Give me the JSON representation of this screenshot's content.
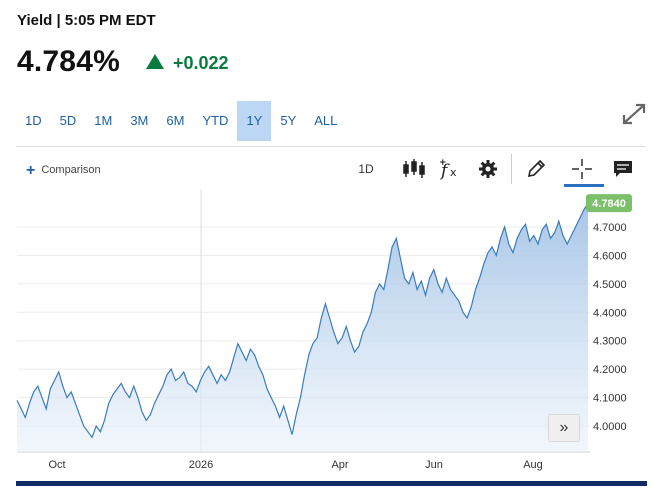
{
  "header": {
    "title": "Yield | 5:05 PM EDT",
    "price": "4.784%",
    "change": "+0.022"
  },
  "ranges": [
    "1D",
    "5D",
    "1M",
    "3M",
    "6M",
    "YTD",
    "1Y",
    "5Y",
    "ALL"
  ],
  "active_range": "1Y",
  "toolbar": {
    "comparison_label": "Comparison",
    "interval_label": "1D",
    "icons": [
      "candlestick-icon",
      "function-icon",
      "gear-icon",
      "pencil-icon",
      "crosshair-icon",
      "comment-icon"
    ]
  },
  "colors": {
    "up": "#0a7b3e",
    "line": "#3a7bbf",
    "accent": "#1f5fa6",
    "last_badge": "#7cc06a"
  },
  "chart_data": {
    "type": "area",
    "y_ticks": [
      "4.7000",
      "4.6000",
      "4.5000",
      "4.4000",
      "4.3000",
      "4.2000",
      "4.1000",
      "4.0000"
    ],
    "ylim": [
      3.92,
      4.8
    ],
    "x_ticks": [
      "Oct",
      "2026",
      "Apr",
      "Jun",
      "Aug"
    ],
    "last_value_label": "4.7840",
    "series": [
      {
        "values": [
          4.09,
          4.06,
          4.03,
          4.08,
          4.12,
          4.14,
          4.1,
          4.06,
          4.13,
          4.16,
          4.19,
          4.14,
          4.1,
          4.12,
          4.08,
          4.04,
          4.0,
          3.98,
          3.96,
          4.0,
          3.98,
          4.02,
          4.08,
          4.11,
          4.13,
          4.15,
          4.12,
          4.1,
          4.14,
          4.1,
          4.05,
          4.02,
          4.04,
          4.08,
          4.11,
          4.14,
          4.18,
          4.2,
          4.16,
          4.17,
          4.19,
          4.15,
          4.14,
          4.12,
          4.16,
          4.19,
          4.21,
          4.18,
          4.15,
          4.18,
          4.16,
          4.19,
          4.24,
          4.29,
          4.26,
          4.23,
          4.27,
          4.25,
          4.21,
          4.18,
          4.13,
          4.1,
          4.07,
          4.03,
          4.07,
          4.02,
          3.97,
          4.04,
          4.1,
          4.18,
          4.25,
          4.29,
          4.31,
          4.38,
          4.43,
          4.38,
          4.33,
          4.29,
          4.31,
          4.35,
          4.3,
          4.26,
          4.28,
          4.33,
          4.36,
          4.4,
          4.47,
          4.5,
          4.48,
          4.55,
          4.63,
          4.66,
          4.59,
          4.52,
          4.5,
          4.54,
          4.48,
          4.51,
          4.46,
          4.52,
          4.55,
          4.5,
          4.47,
          4.52,
          4.48,
          4.46,
          4.44,
          4.4,
          4.38,
          4.42,
          4.48,
          4.52,
          4.57,
          4.61,
          4.63,
          4.6,
          4.66,
          4.7,
          4.64,
          4.61,
          4.66,
          4.69,
          4.71,
          4.65,
          4.67,
          4.64,
          4.69,
          4.71,
          4.66,
          4.68,
          4.72,
          4.67,
          4.64,
          4.67,
          4.7,
          4.73,
          4.76,
          4.784
        ]
      }
    ]
  }
}
